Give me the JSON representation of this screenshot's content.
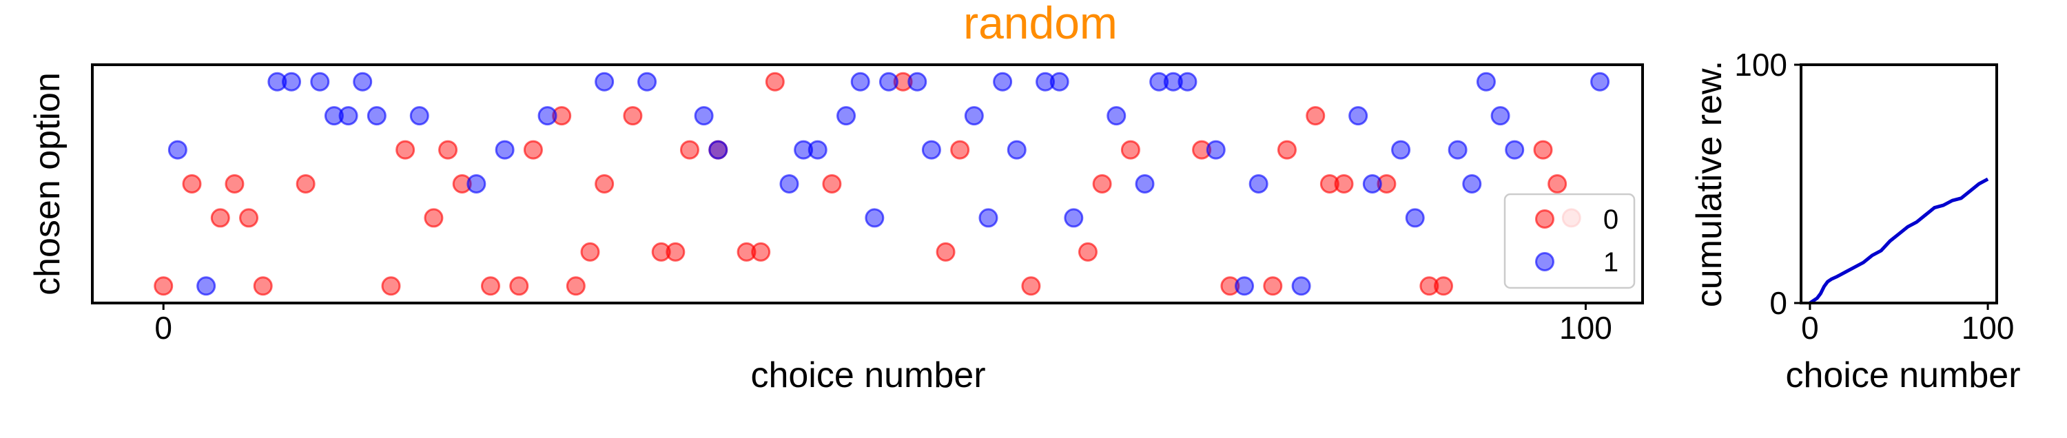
{
  "title": "random",
  "colors": {
    "title": "#ff8c00",
    "reward_0": "#ff0000",
    "reward_1": "#0000ff",
    "cumulative_line": "#0000cd"
  },
  "chart_data": [
    {
      "type": "scatter",
      "title": "random",
      "xlabel": "choice number",
      "ylabel": "chosen option",
      "xlim": [
        -5,
        104
      ],
      "ylim": [
        -0.5,
        6.5
      ],
      "xticks": [
        0,
        100
      ],
      "yticks": [],
      "grid": false,
      "legend": {
        "position": "bottom-right",
        "entries": [
          "0",
          "1"
        ]
      },
      "series": [
        {
          "name": "0",
          "points": [
            [
              0,
              0
            ],
            [
              2,
              3
            ],
            [
              4,
              2
            ],
            [
              5,
              3
            ],
            [
              6,
              2
            ],
            [
              7,
              0
            ],
            [
              10,
              3
            ],
            [
              16,
              0
            ],
            [
              17,
              4
            ],
            [
              19,
              2
            ],
            [
              20,
              4
            ],
            [
              21,
              3
            ],
            [
              23,
              0
            ],
            [
              25,
              0
            ],
            [
              26,
              4
            ],
            [
              28,
              5
            ],
            [
              29,
              0
            ],
            [
              30,
              1
            ],
            [
              31,
              3
            ],
            [
              33,
              5
            ],
            [
              35,
              1
            ],
            [
              36,
              1
            ],
            [
              37,
              4
            ],
            [
              39,
              4
            ],
            [
              41,
              1
            ],
            [
              42,
              1
            ],
            [
              43,
              6
            ],
            [
              47,
              3
            ],
            [
              52,
              6
            ],
            [
              55,
              1
            ],
            [
              56,
              4
            ],
            [
              61,
              0
            ],
            [
              65,
              1
            ],
            [
              66,
              3
            ],
            [
              68,
              4
            ],
            [
              73,
              4
            ],
            [
              75,
              0
            ],
            [
              78,
              0
            ],
            [
              79,
              4
            ],
            [
              81,
              5
            ],
            [
              82,
              3
            ],
            [
              83,
              3
            ],
            [
              86,
              3
            ],
            [
              89,
              0
            ],
            [
              90,
              0
            ],
            [
              97,
              4
            ],
            [
              98,
              3
            ],
            [
              99,
              2
            ]
          ]
        },
        {
          "name": "1",
          "points": [
            [
              1,
              4
            ],
            [
              3,
              0
            ],
            [
              8,
              6
            ],
            [
              9,
              6
            ],
            [
              11,
              6
            ],
            [
              12,
              5
            ],
            [
              13,
              5
            ],
            [
              14,
              6
            ],
            [
              15,
              5
            ],
            [
              18,
              5
            ],
            [
              22,
              3
            ],
            [
              24,
              4
            ],
            [
              27,
              5
            ],
            [
              31,
              6
            ],
            [
              34,
              6
            ],
            [
              38,
              5
            ],
            [
              39,
              4
            ],
            [
              44,
              3
            ],
            [
              45,
              4
            ],
            [
              46,
              4
            ],
            [
              48,
              5
            ],
            [
              49,
              6
            ],
            [
              50,
              2
            ],
            [
              51,
              6
            ],
            [
              53,
              6
            ],
            [
              54,
              4
            ],
            [
              57,
              5
            ],
            [
              58,
              2
            ],
            [
              59,
              6
            ],
            [
              60,
              4
            ],
            [
              62,
              6
            ],
            [
              63,
              6
            ],
            [
              64,
              2
            ],
            [
              67,
              5
            ],
            [
              69,
              3
            ],
            [
              70,
              6
            ],
            [
              71,
              6
            ],
            [
              72,
              6
            ],
            [
              74,
              4
            ],
            [
              76,
              0
            ],
            [
              77,
              3
            ],
            [
              80,
              0
            ],
            [
              84,
              5
            ],
            [
              85,
              3
            ],
            [
              87,
              4
            ],
            [
              88,
              2
            ],
            [
              91,
              4
            ],
            [
              92,
              3
            ],
            [
              93,
              6
            ],
            [
              94,
              5
            ],
            [
              95,
              4
            ],
            [
              101,
              6
            ]
          ]
        }
      ]
    },
    {
      "type": "line",
      "title": "",
      "xlabel": "choice number",
      "ylabel": "cumulative rew.",
      "xlim": [
        -5,
        105
      ],
      "ylim": [
        0,
        100
      ],
      "xticks": [
        0,
        100
      ],
      "yticks": [
        0,
        100
      ],
      "grid": false,
      "series": [
        {
          "x": [
            0,
            2,
            4,
            6,
            8,
            10,
            12,
            15,
            20,
            25,
            30,
            35,
            40,
            45,
            50,
            55,
            60,
            65,
            70,
            75,
            80,
            85,
            90,
            95,
            100
          ],
          "y": [
            0,
            1,
            2,
            4,
            7,
            9,
            10,
            11,
            13,
            15,
            17,
            20,
            22,
            26,
            29,
            32,
            34,
            37,
            40,
            41,
            43,
            44,
            47,
            50,
            52
          ]
        }
      ]
    }
  ]
}
